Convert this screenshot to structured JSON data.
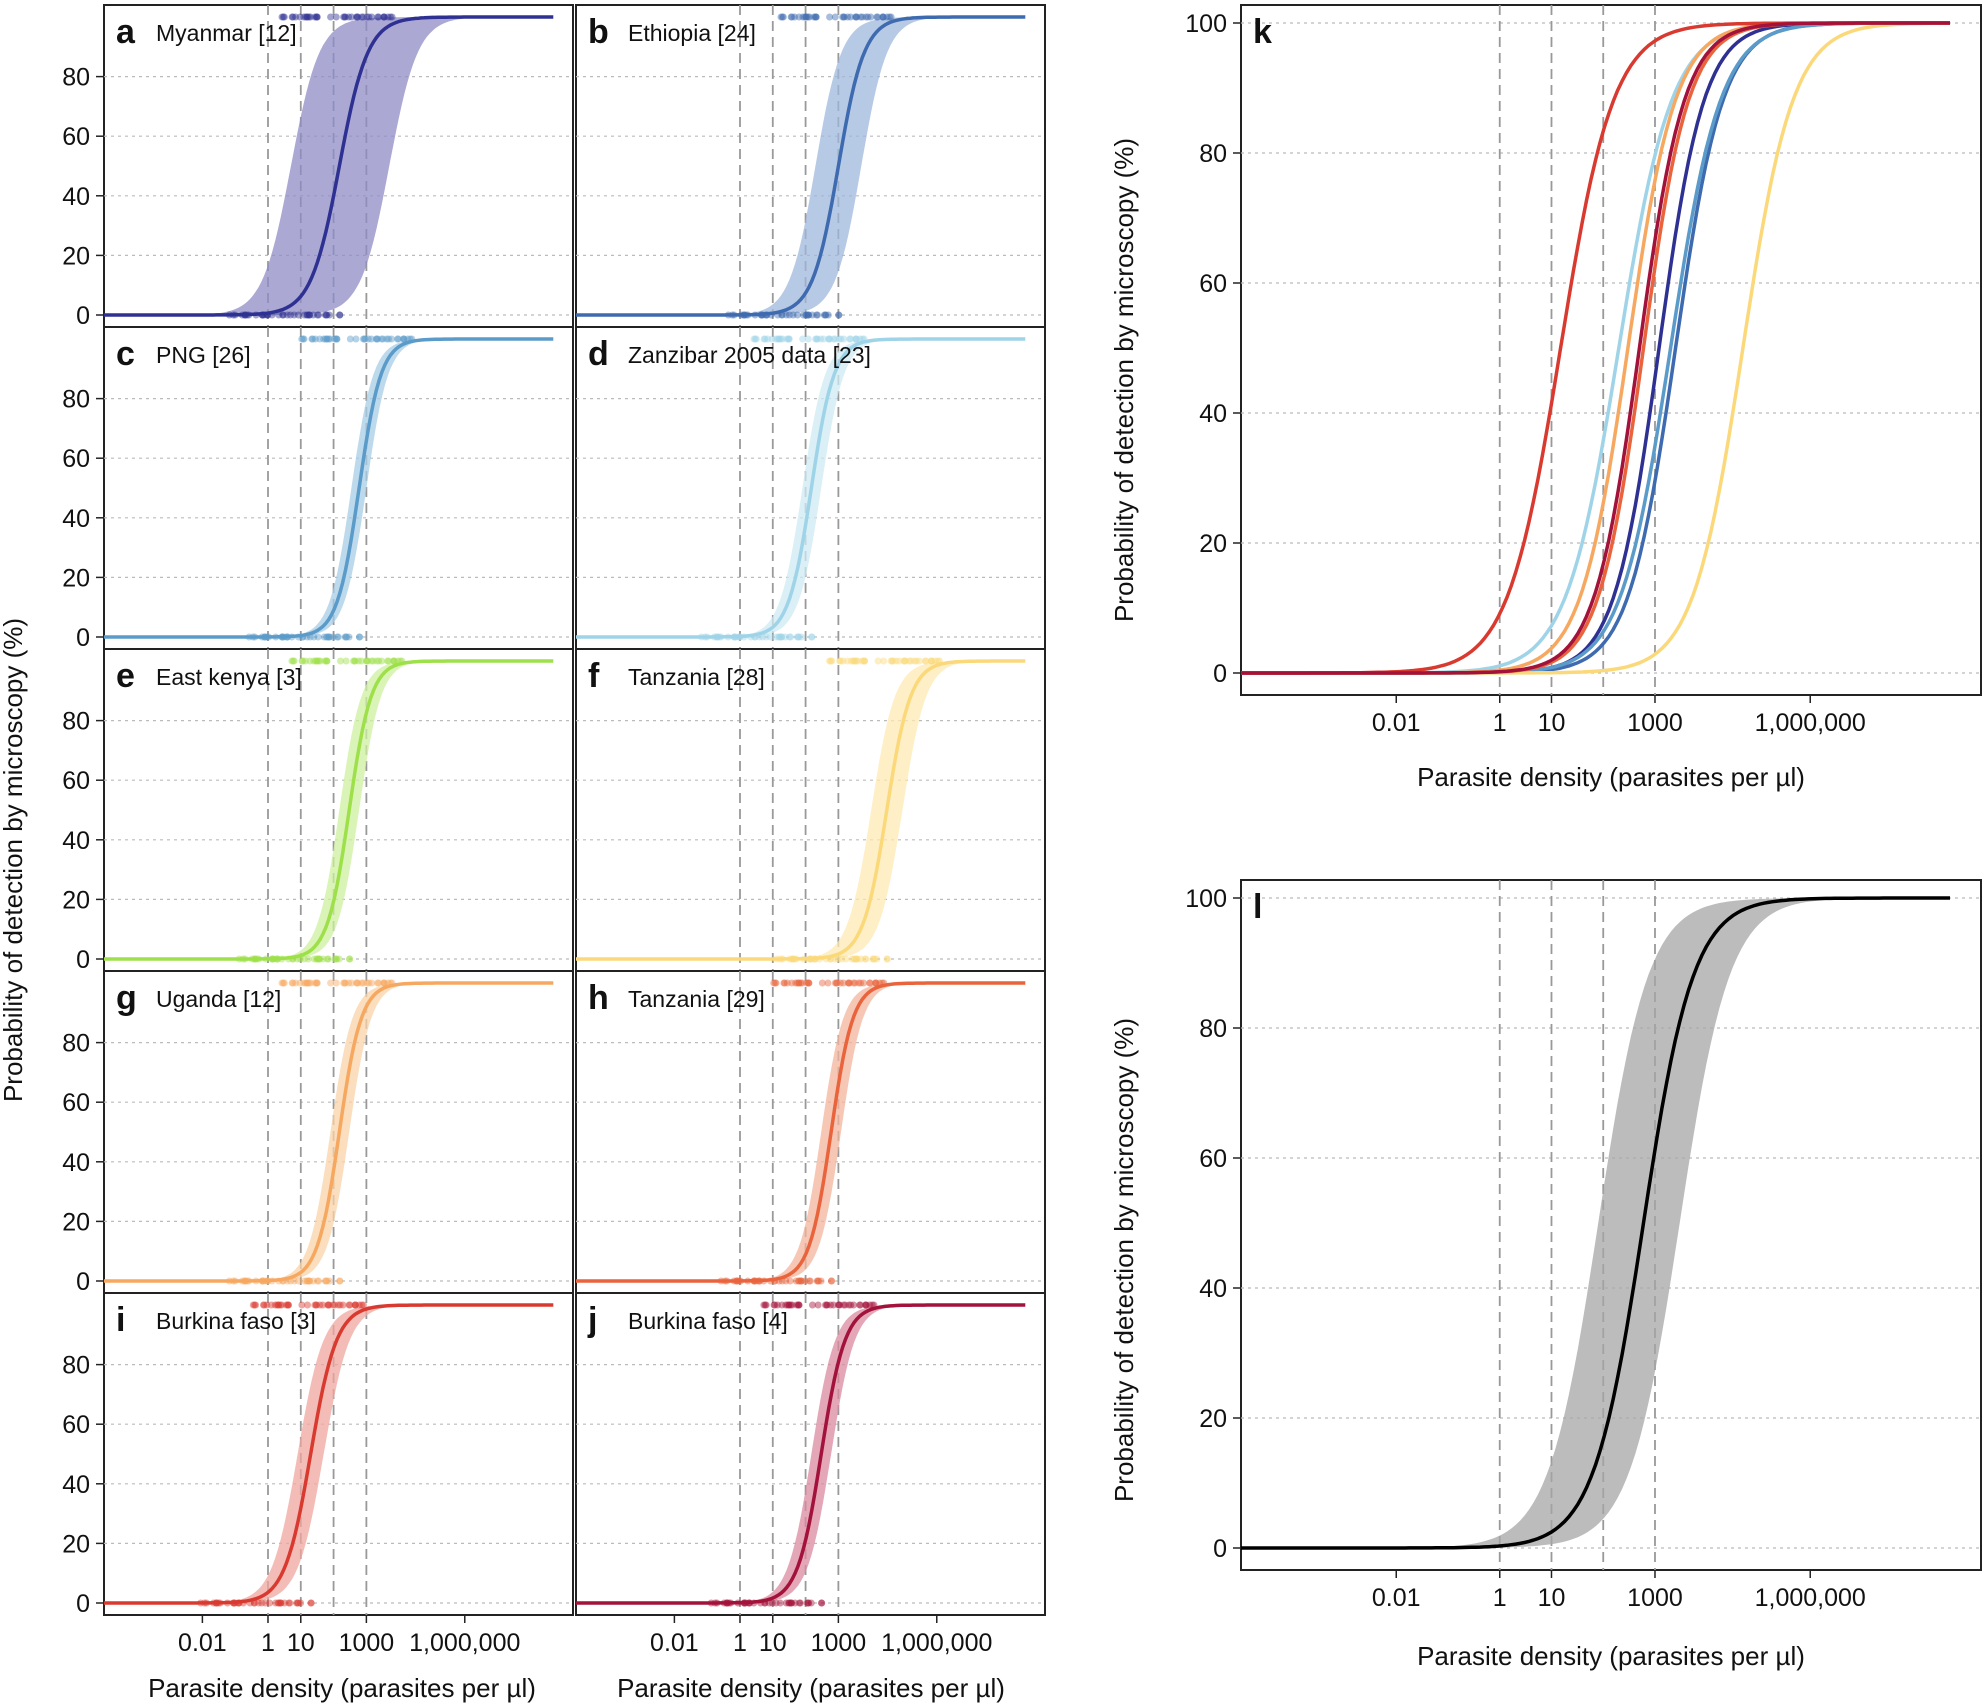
{
  "figure": {
    "shared_ylabel": "Probability of detection by microscopy (%)",
    "xlabel": "Parasite density (parasites per µl)",
    "x_tick_labels": [
      "0.01",
      "1",
      "10",
      "1000",
      "1,000,000"
    ],
    "x_tick_values": [
      0.01,
      1,
      10,
      1000,
      1000000
    ],
    "y_tick_labels": [
      "0",
      "20",
      "40",
      "60",
      "80"
    ],
    "y_tick_labels_large": [
      "0",
      "20",
      "40",
      "60",
      "80",
      "100"
    ]
  },
  "chart_data": [
    {
      "type": "line",
      "panel": "a",
      "title": "Myanmar [12]",
      "color": "#2e3192",
      "band_color": "#8f8cc6",
      "midpoint_x": 150,
      "slope": 1.0,
      "band_low_mid": 5,
      "band_high_mid": 5000,
      "ylim": [
        0,
        100
      ],
      "xlim": [
        1e-05,
        1000000000
      ],
      "series": [
        {
          "name": "Myanmar [12]",
          "values": "logistic curve with 95% band"
        }
      ]
    },
    {
      "type": "line",
      "panel": "b",
      "title": "Ethiopia [24]",
      "color": "#3e6aaf",
      "band_color": "#9db7dc",
      "midpoint_x": 1000,
      "slope": 1.1,
      "band_low_mid": 200,
      "band_high_mid": 5000,
      "ylim": [
        0,
        100
      ]
    },
    {
      "type": "line",
      "panel": "c",
      "title": "PNG [26]",
      "color": "#5b9bc9",
      "band_color": "#a7cce6",
      "midpoint_x": 600,
      "slope": 1.3,
      "band_low_mid": 350,
      "band_high_mid": 1000,
      "ylim": [
        0,
        100
      ]
    },
    {
      "type": "line",
      "panel": "d",
      "title": "Zanzibar 2005 data [23]",
      "color": "#9fd4e8",
      "band_color": "#cde9f3",
      "midpoint_x": 150,
      "slope": 1.25,
      "band_low_mid": 80,
      "band_high_mid": 300,
      "ylim": [
        0,
        100
      ]
    },
    {
      "type": "line",
      "panel": "e",
      "title": "East kenya [3]",
      "color": "#9ee04a",
      "band_color": "#cdf0a0",
      "midpoint_x": 300,
      "slope": 1.3,
      "band_low_mid": 150,
      "band_high_mid": 600,
      "ylim": [
        0,
        100
      ]
    },
    {
      "type": "line",
      "panel": "f",
      "title": "Tanzania [28]",
      "color": "#fbd97a",
      "band_color": "#fde9b4",
      "midpoint_x": 30000,
      "slope": 1.2,
      "band_low_mid": 10000,
      "band_high_mid": 90000,
      "ylim": [
        0,
        100
      ]
    },
    {
      "type": "line",
      "panel": "g",
      "title": "Uganda [12]",
      "color": "#f6a860",
      "band_color": "#fad3a8",
      "midpoint_x": 150,
      "slope": 1.3,
      "band_low_mid": 80,
      "band_high_mid": 300,
      "ylim": [
        0,
        100
      ]
    },
    {
      "type": "line",
      "panel": "h",
      "title": "Tanzania [29]",
      "color": "#e9643c",
      "band_color": "#f4b49c",
      "midpoint_x": 600,
      "slope": 1.3,
      "band_low_mid": 300,
      "band_high_mid": 1200,
      "ylim": [
        0,
        100
      ]
    },
    {
      "type": "line",
      "panel": "i",
      "title": "Burkina faso [3]",
      "color": "#d93a30",
      "band_color": "#f0a59e",
      "midpoint_x": 20,
      "slope": 1.1,
      "band_low_mid": 8,
      "band_high_mid": 50,
      "ylim": [
        0,
        100
      ]
    },
    {
      "type": "line",
      "panel": "j",
      "title": "Burkina faso [4]",
      "color": "#a3123a",
      "band_color": "#d98aa0",
      "midpoint_x": 300,
      "slope": 1.2,
      "band_low_mid": 150,
      "band_high_mid": 600,
      "ylim": [
        0,
        100
      ]
    },
    {
      "type": "line",
      "panel": "k",
      "title": "",
      "ylim": [
        0,
        100
      ],
      "series": [
        {
          "name": "Myanmar [12]",
          "color": "#2e3192",
          "midpoint_x": 1200,
          "slope": 1.0
        },
        {
          "name": "Ethiopia [24]",
          "color": "#3e6aaf",
          "midpoint_x": 2500,
          "slope": 0.95
        },
        {
          "name": "PNG [26]",
          "color": "#5b9bc9",
          "midpoint_x": 2000,
          "slope": 0.9
        },
        {
          "name": "Zanzibar 2005 data [23]",
          "color": "#9fd4e8",
          "midpoint_x": 200,
          "slope": 0.85
        },
        {
          "name": "Tanzania [28]",
          "color": "#fbd97a",
          "midpoint_x": 50000,
          "slope": 0.9
        },
        {
          "name": "Uganda [12]",
          "color": "#f6a860",
          "midpoint_x": 300,
          "slope": 0.95
        },
        {
          "name": "Tanzania [29]",
          "color": "#e9643c",
          "midpoint_x": 600,
          "slope": 1.0
        },
        {
          "name": "Burkina faso [3]",
          "color": "#d93a30",
          "midpoint_x": 15,
          "slope": 0.85
        },
        {
          "name": "Burkina faso [4]",
          "color": "#a3123a",
          "midpoint_x": 500,
          "slope": 1.0
        }
      ]
    },
    {
      "type": "line",
      "panel": "l",
      "title": "",
      "color": "#000000",
      "band_color": "#a6a6a6",
      "midpoint_x": 600,
      "slope": 0.9,
      "band_low_mid": 80,
      "band_high_mid": 3000,
      "ylim": [
        0,
        100
      ]
    }
  ],
  "panel_letters": {
    "a": "a",
    "b": "b",
    "c": "c",
    "d": "d",
    "e": "e",
    "f": "f",
    "g": "g",
    "h": "h",
    "i": "i",
    "j": "j",
    "k": "k",
    "l": "l"
  }
}
